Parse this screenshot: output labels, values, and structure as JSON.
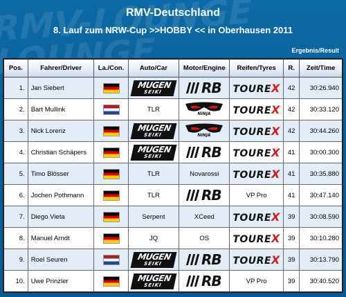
{
  "background": {
    "watermark": "RMV-LOUNGE"
  },
  "header": {
    "title": "RMV-Deutschland",
    "subtitle": "8. Lauf zum NRW-Cup >>HOBBY << in Oberhausen 2011",
    "result_label": "Ergebnis/Result"
  },
  "colors": {
    "background": "#0a5f98",
    "row_alt": "#e3edf8",
    "tourex_x": "#d31b1b"
  },
  "table": {
    "headers": [
      "Pos.",
      "Fahrer/Driver",
      "La./Con.",
      "Auto/Car",
      "Motor/Engine",
      "Reifen/Tyres",
      "R.",
      "Zeit/Time"
    ],
    "rows": [
      {
        "pos": "1.",
        "driver": "Jan Siebert",
        "country": "de",
        "car": "mugen-logo",
        "motor": "rb-logo",
        "tyres": "tourex-logo",
        "laps": "42",
        "time": "30:26.940"
      },
      {
        "pos": "2.",
        "driver": "Bart Mullink",
        "country": "nl",
        "car": "TLR",
        "motor": "ninja-logo",
        "tyres": "tourex-logo",
        "laps": "42",
        "time": "30:33.120"
      },
      {
        "pos": "3.",
        "driver": "Nick Lorenz",
        "country": "de",
        "car": "mugen-logo",
        "motor": "ninja-logo",
        "tyres": "tourex-logo",
        "laps": "42",
        "time": "30:44.260"
      },
      {
        "pos": "4.",
        "driver": "Christian Schäpers",
        "country": "de",
        "car": "mugen-logo",
        "motor": "rb-logo",
        "tyres": "tourex-logo",
        "laps": "41",
        "time": "30:00.300"
      },
      {
        "pos": "5.",
        "driver": "Timo Blösser",
        "country": "de",
        "car": "TLR",
        "motor": "Novarossi",
        "tyres": "tourex-logo",
        "laps": "41",
        "time": "30:35.880"
      },
      {
        "pos": "6.",
        "driver": "Jochen Pothmann",
        "country": "de",
        "car": "TLR",
        "motor": "rb-logo",
        "tyres": "VP Pro",
        "laps": "41",
        "time": "30:47.140"
      },
      {
        "pos": "7.",
        "driver": "Diego Vieta",
        "country": "de",
        "car": "Serpent",
        "motor": "XCeed",
        "tyres": "tourex-logo",
        "laps": "39",
        "time": "30:08.590"
      },
      {
        "pos": "8.",
        "driver": "Manuel Arndt",
        "country": "de",
        "car": "JQ",
        "motor": "OS",
        "tyres": "tourex-logo",
        "laps": "39",
        "time": "30:10.280"
      },
      {
        "pos": "9.",
        "driver": "Roel Seuren",
        "country": "nl",
        "car": "mugen-logo",
        "motor": "rb-logo",
        "tyres": "tourex-logo",
        "laps": "39",
        "time": "30:13.790"
      },
      {
        "pos": "10.",
        "driver": "Uwe Prinzler",
        "country": "de",
        "car": "mugen-logo",
        "motor": "rb-logo",
        "tyres": "VP Pro",
        "laps": "39",
        "time": "30:40.520"
      }
    ]
  },
  "logos": {
    "mugen": {
      "line1": "MUGEN",
      "line2": "SEIKI"
    },
    "rb": {
      "text": "RB"
    },
    "tourex": {
      "text": "TOURE",
      "x": "X"
    }
  }
}
